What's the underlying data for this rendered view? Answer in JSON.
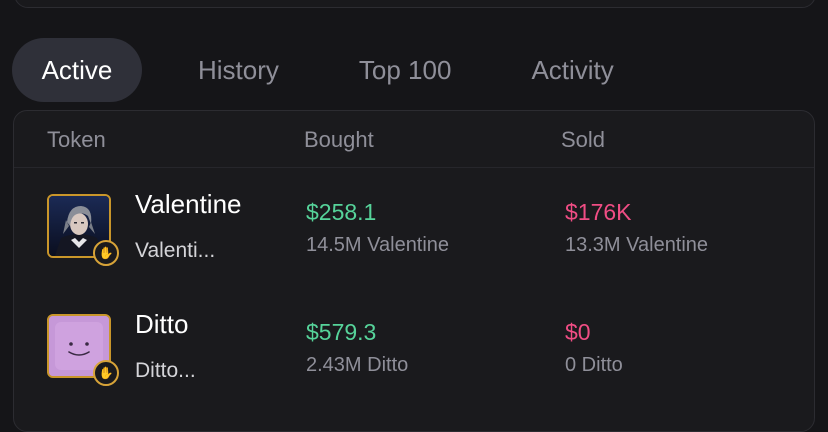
{
  "tabs": [
    {
      "label": "Active",
      "active": true
    },
    {
      "label": "History",
      "active": false
    },
    {
      "label": "Top 100",
      "active": false
    },
    {
      "label": "Activity",
      "active": false
    }
  ],
  "table": {
    "headers": {
      "token": "Token",
      "bought": "Bought",
      "sold": "Sold"
    },
    "rows": [
      {
        "name": "Valentine",
        "subtitle": "Valenti...",
        "bought_usd": "$258.1",
        "bought_amount": "14.5M Valentine",
        "sold_usd": "$176K",
        "sold_amount": "13.3M Valentine",
        "avatar_icon": "anime-character-portrait",
        "badge_icon": "hand-wave-icon"
      },
      {
        "name": "Ditto",
        "subtitle": "Ditto...",
        "bought_usd": "$579.3",
        "bought_amount": "2.43M Ditto",
        "sold_usd": "$0",
        "sold_amount": "0 Ditto",
        "avatar_icon": "ditto-face",
        "badge_icon": "hand-wave-icon"
      }
    ]
  },
  "colors": {
    "background": "#151518",
    "panel": "#1a1a1d",
    "active_tab": "#2f3039",
    "bought_green": "#56d39a",
    "sold_pink": "#f04d84",
    "muted_text": "#8f8f99",
    "avatar_border_gold": "#c9962a"
  }
}
